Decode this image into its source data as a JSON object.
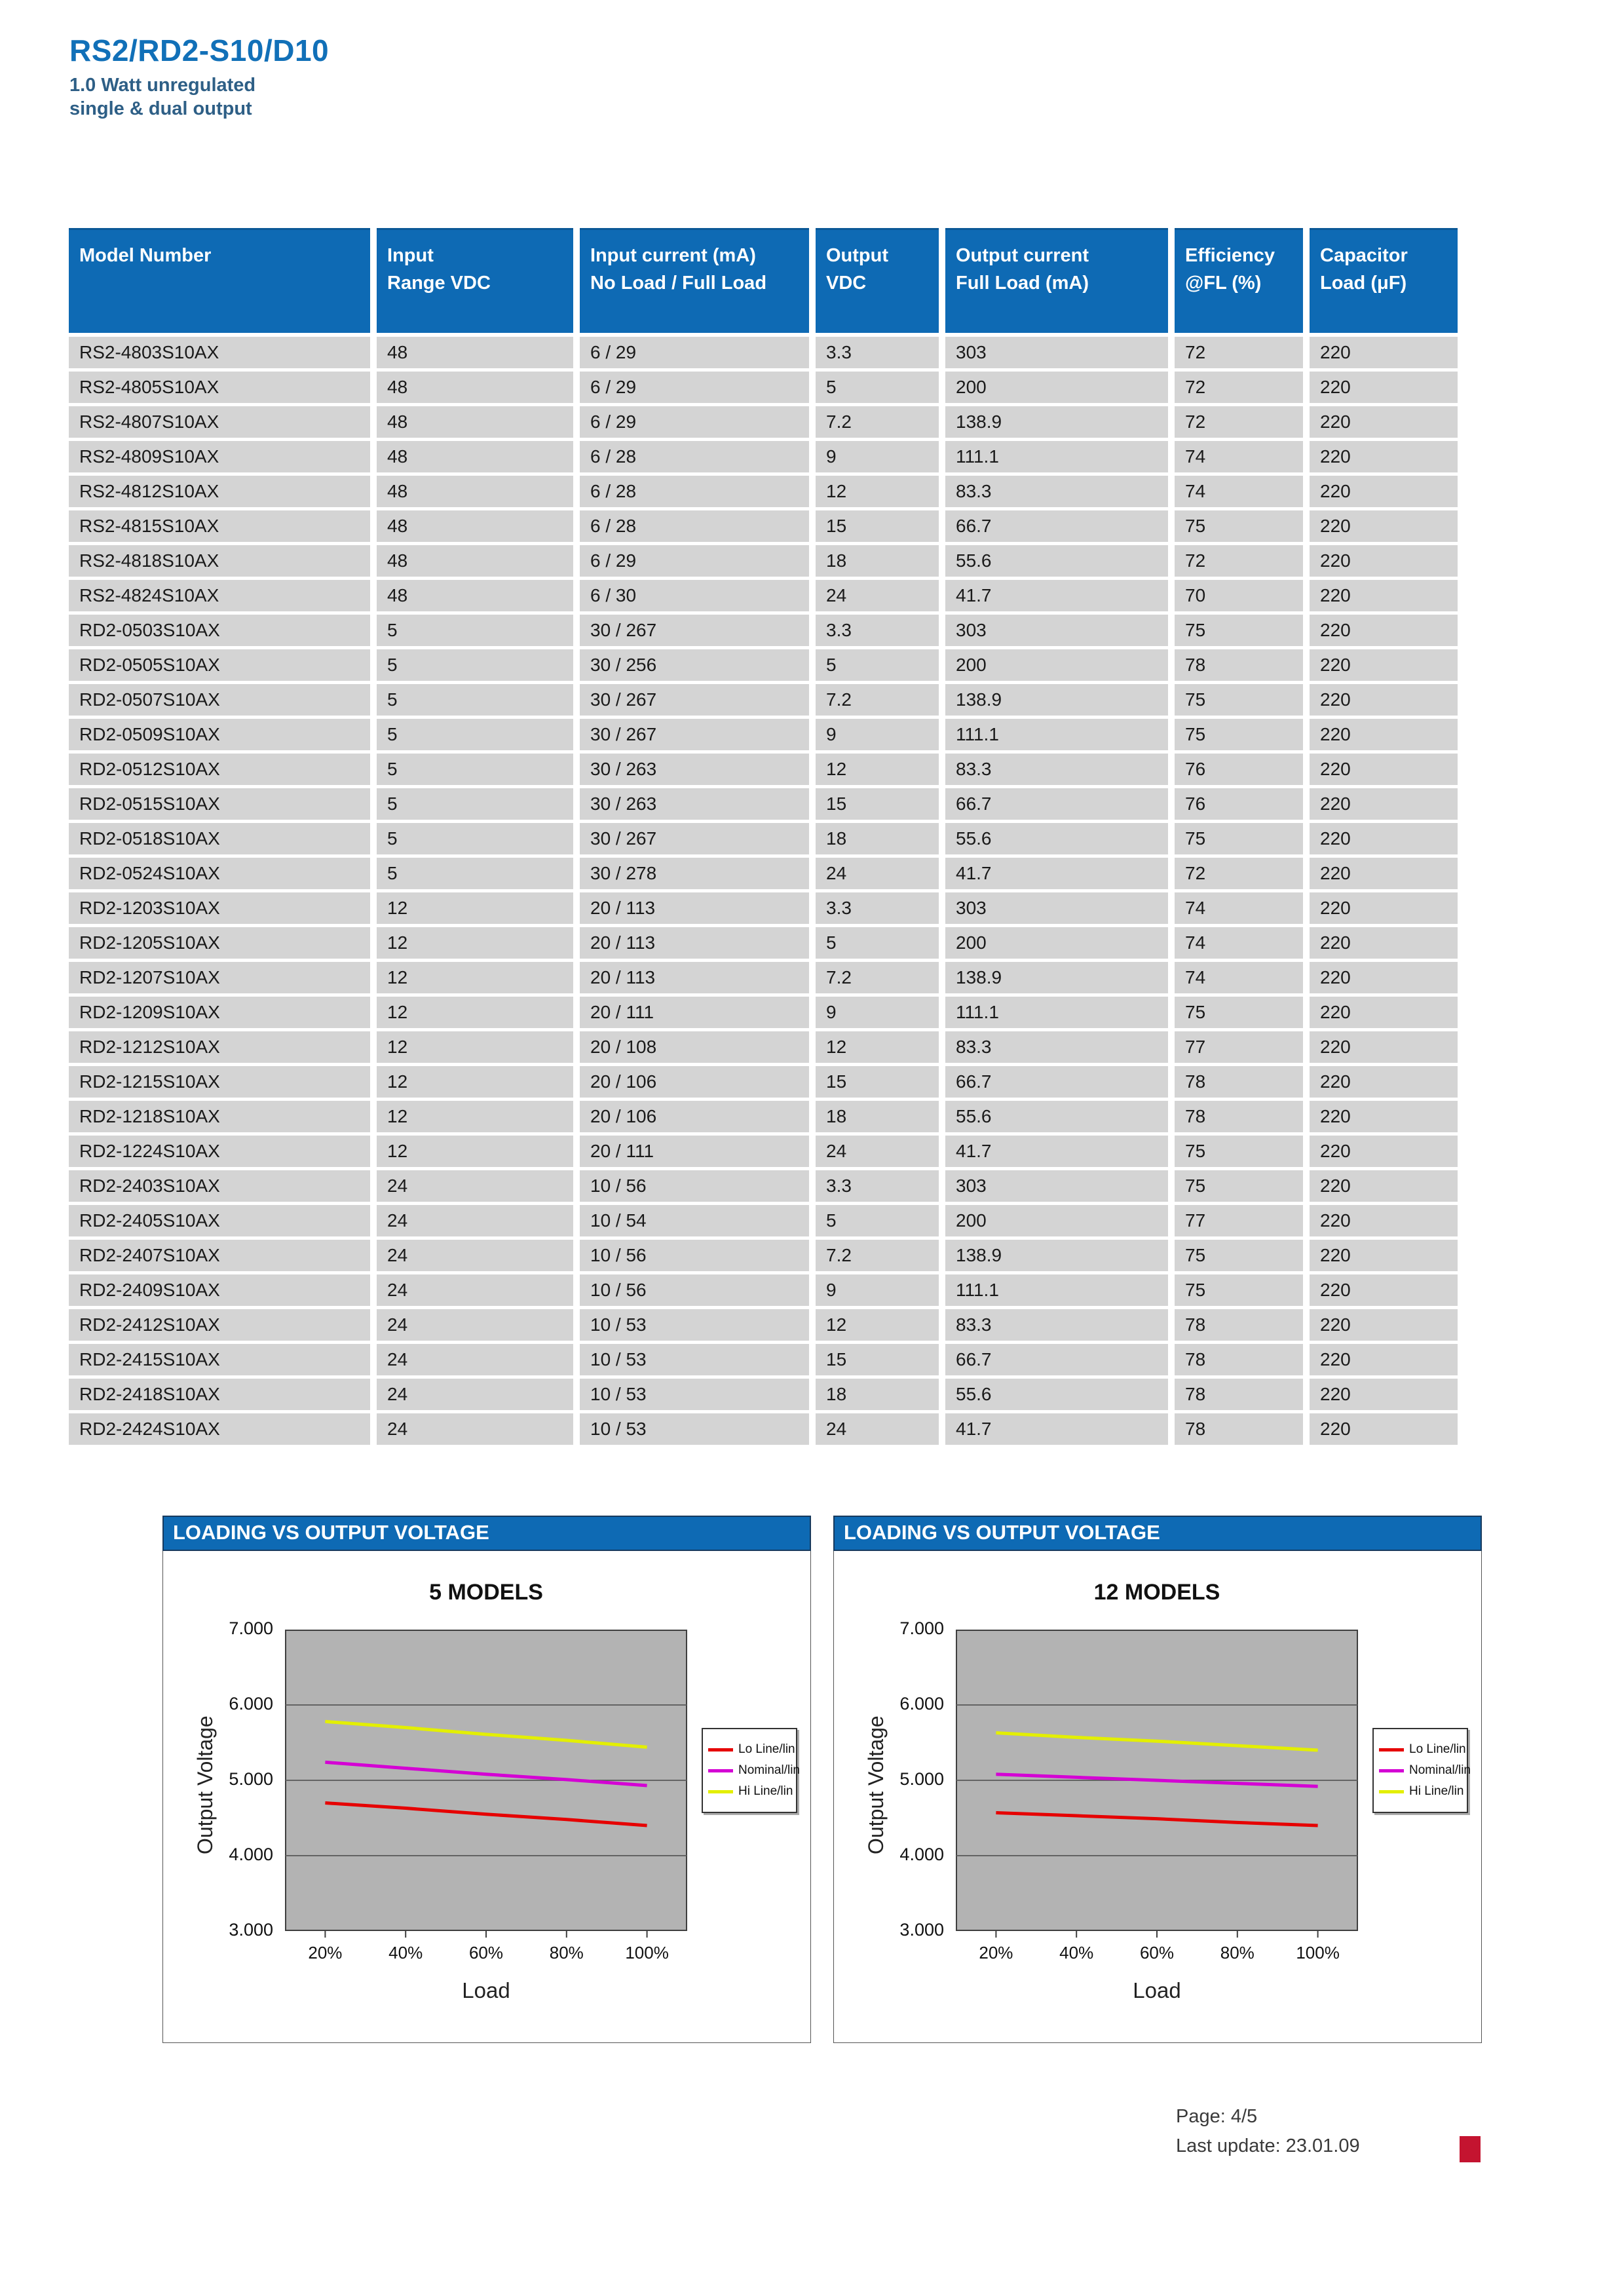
{
  "page": {
    "title": "RS2/RD2-S10/D10",
    "subtitle_line1": "1.0 Watt unregulated",
    "subtitle_line2": "single & dual output",
    "footer_page": "Page: 4/5",
    "footer_update": "Last update: 23.01.09"
  },
  "colors": {
    "header_blue": "#0e6ab4",
    "row_gray": "#d4d4d4",
    "plot_gray": "#b3b3b3",
    "grid_line": "#636363",
    "footer_mark_red": "#c41430",
    "title_blue": "#1170b8",
    "subtitle_blue": "#2e5f86"
  },
  "table": {
    "headers": [
      {
        "line1": "Model Number",
        "line2": ""
      },
      {
        "line1": "Input",
        "line2": "Range VDC"
      },
      {
        "line1": "Input current (mA)",
        "line2": "No Load / Full Load"
      },
      {
        "line1": "Output",
        "line2": "VDC"
      },
      {
        "line1": "Output current",
        "line2": "Full Load (mA)"
      },
      {
        "line1": "Efficiency",
        "line2": "@FL (%)"
      },
      {
        "line1": "Capacitor",
        "line2": "Load (μF)"
      }
    ],
    "rows": [
      [
        "RS2-4803S10AX",
        "48",
        "6 / 29",
        "3.3",
        "303",
        "72",
        "220"
      ],
      [
        "RS2-4805S10AX",
        "48",
        "6 / 29",
        "5",
        "200",
        "72",
        "220"
      ],
      [
        "RS2-4807S10AX",
        "48",
        "6 / 29",
        "7.2",
        "138.9",
        "72",
        "220"
      ],
      [
        "RS2-4809S10AX",
        "48",
        "6 / 28",
        "9",
        "111.1",
        "74",
        "220"
      ],
      [
        "RS2-4812S10AX",
        "48",
        "6 / 28",
        "12",
        "83.3",
        "74",
        "220"
      ],
      [
        "RS2-4815S10AX",
        "48",
        "6 / 28",
        "15",
        "66.7",
        "75",
        "220"
      ],
      [
        "RS2-4818S10AX",
        "48",
        "6 / 29",
        "18",
        "55.6",
        "72",
        "220"
      ],
      [
        "RS2-4824S10AX",
        "48",
        "6 / 30",
        "24",
        "41.7",
        "70",
        "220"
      ],
      [
        "RD2-0503S10AX",
        "5",
        "30 / 267",
        "3.3",
        "303",
        "75",
        "220"
      ],
      [
        "RD2-0505S10AX",
        "5",
        "30 / 256",
        "5",
        "200",
        "78",
        "220"
      ],
      [
        "RD2-0507S10AX",
        "5",
        "30 / 267",
        "7.2",
        "138.9",
        "75",
        "220"
      ],
      [
        "RD2-0509S10AX",
        "5",
        "30 / 267",
        "9",
        "111.1",
        "75",
        "220"
      ],
      [
        "RD2-0512S10AX",
        "5",
        "30 / 263",
        "12",
        "83.3",
        "76",
        "220"
      ],
      [
        "RD2-0515S10AX",
        "5",
        "30 / 263",
        "15",
        "66.7",
        "76",
        "220"
      ],
      [
        "RD2-0518S10AX",
        "5",
        "30 / 267",
        "18",
        "55.6",
        "75",
        "220"
      ],
      [
        "RD2-0524S10AX",
        "5",
        "30 / 278",
        "24",
        "41.7",
        "72",
        "220"
      ],
      [
        "RD2-1203S10AX",
        "12",
        "20 / 113",
        "3.3",
        "303",
        "74",
        "220"
      ],
      [
        "RD2-1205S10AX",
        "12",
        "20 / 113",
        "5",
        "200",
        "74",
        "220"
      ],
      [
        "RD2-1207S10AX",
        "12",
        "20 / 113",
        "7.2",
        "138.9",
        "74",
        "220"
      ],
      [
        "RD2-1209S10AX",
        "12",
        "20 / 111",
        "9",
        "111.1",
        "75",
        "220"
      ],
      [
        "RD2-1212S10AX",
        "12",
        "20 / 108",
        "12",
        "83.3",
        "77",
        "220"
      ],
      [
        "RD2-1215S10AX",
        "12",
        "20 / 106",
        "15",
        "66.7",
        "78",
        "220"
      ],
      [
        "RD2-1218S10AX",
        "12",
        "20 / 106",
        "18",
        "55.6",
        "78",
        "220"
      ],
      [
        "RD2-1224S10AX",
        "12",
        "20 / 111",
        "24",
        "41.7",
        "75",
        "220"
      ],
      [
        "RD2-2403S10AX",
        "24",
        "10 / 56",
        "3.3",
        "303",
        "75",
        "220"
      ],
      [
        "RD2-2405S10AX",
        "24",
        "10 / 54",
        "5",
        "200",
        "77",
        "220"
      ],
      [
        "RD2-2407S10AX",
        "24",
        "10 / 56",
        "7.2",
        "138.9",
        "75",
        "220"
      ],
      [
        "RD2-2409S10AX",
        "24",
        "10 / 56",
        "9",
        "111.1",
        "75",
        "220"
      ],
      [
        "RD2-2412S10AX",
        "24",
        "10 / 53",
        "12",
        "83.3",
        "78",
        "220"
      ],
      [
        "RD2-2415S10AX",
        "24",
        "10 / 53",
        "15",
        "66.7",
        "78",
        "220"
      ],
      [
        "RD2-2418S10AX",
        "24",
        "10 / 53",
        "18",
        "55.6",
        "78",
        "220"
      ],
      [
        "RD2-2424S10AX",
        "24",
        "10 / 53",
        "24",
        "41.7",
        "78",
        "220"
      ]
    ]
  },
  "chart_data": [
    {
      "type": "line",
      "panel_header": "LOADING VS OUTPUT VOLTAGE",
      "title": "5 MODELS",
      "xlabel": "Load",
      "ylabel": "Output Voltage",
      "x_ticklabels": [
        "20%",
        "40%",
        "60%",
        "80%",
        "100%"
      ],
      "y_ticklabels": [
        "7.000",
        "6.000",
        "5.000",
        "4.000",
        "3.000"
      ],
      "ylim": [
        3.0,
        7.0
      ],
      "grid": "horizontal",
      "legend_position": "right",
      "plot_bg": "#b3b3b3",
      "series": [
        {
          "name": "Lo Line/lin",
          "color": "#e60000",
          "values": [
            4.7,
            4.63,
            4.55,
            4.48,
            4.4
          ]
        },
        {
          "name": "Nominal/lin",
          "color": "#d400d4",
          "values": [
            5.24,
            5.16,
            5.08,
            5.01,
            4.93
          ]
        },
        {
          "name": "Hi Line/lin",
          "color": "#e3ef00",
          "values": [
            5.78,
            5.7,
            5.61,
            5.53,
            5.44
          ]
        }
      ]
    },
    {
      "type": "line",
      "panel_header": "LOADING VS OUTPUT VOLTAGE",
      "title": "12 MODELS",
      "xlabel": "Load",
      "ylabel": "Output Voltage",
      "x_ticklabels": [
        "20%",
        "40%",
        "60%",
        "80%",
        "100%"
      ],
      "y_ticklabels": [
        "7.000",
        "6.000",
        "5.000",
        "4.000",
        "3.000"
      ],
      "ylim": [
        3.0,
        7.0
      ],
      "grid": "horizontal",
      "legend_position": "right",
      "plot_bg": "#b3b3b3",
      "series": [
        {
          "name": "Lo Line/lin",
          "color": "#e60000",
          "values": [
            4.57,
            4.53,
            4.49,
            4.44,
            4.4
          ]
        },
        {
          "name": "Nominal/lin",
          "color": "#d400d4",
          "values": [
            5.08,
            5.04,
            5.0,
            4.96,
            4.92
          ]
        },
        {
          "name": "Hi Line/lin",
          "color": "#e3ef00",
          "values": [
            5.63,
            5.57,
            5.52,
            5.46,
            5.4
          ]
        }
      ]
    }
  ]
}
